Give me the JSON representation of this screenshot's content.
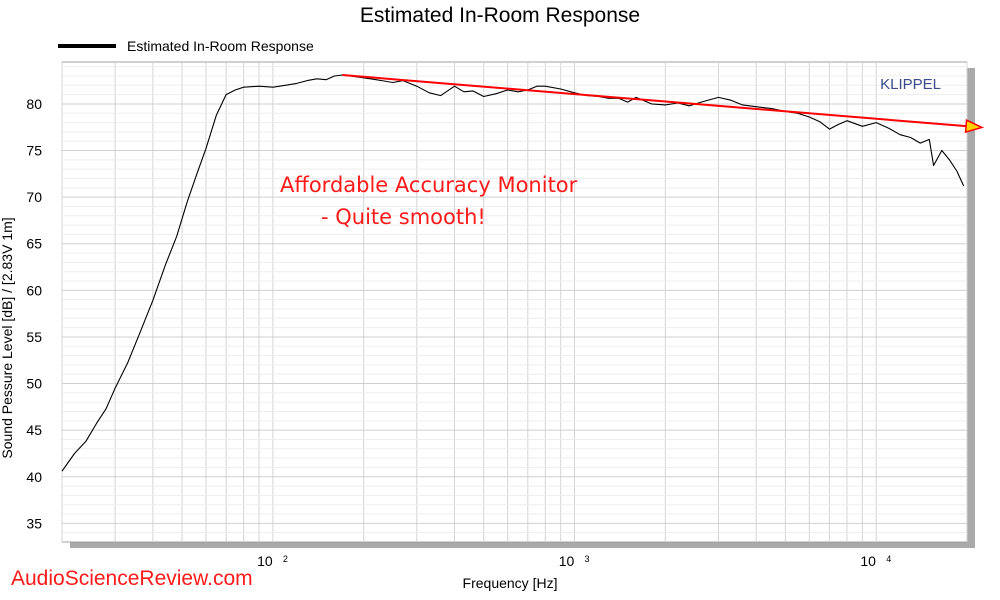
{
  "chart_data": {
    "type": "line",
    "title": "Estimated In-Room Response",
    "xlabel": "Frequency [Hz]",
    "ylabel": "Sound Pessure Level [dB]  / [2.83V 1m]",
    "x_scale": "log",
    "xlim": [
      20,
      20000
    ],
    "ylim": [
      33,
      84.5
    ],
    "y_ticks": [
      35,
      40,
      45,
      50,
      55,
      60,
      65,
      70,
      75,
      80
    ],
    "x_ticks": [
      {
        "base": "10",
        "exp": "2",
        "value": 100
      },
      {
        "base": "10",
        "exp": "3",
        "value": 1000
      },
      {
        "base": "10",
        "exp": "4",
        "value": 10000
      }
    ],
    "grid": true,
    "legend": {
      "position": "top-left",
      "entries": [
        "Estimated In-Room Response"
      ]
    },
    "series": [
      {
        "name": "Estimated In-Room Response",
        "color": "#000000",
        "x": [
          20,
          22,
          24,
          26,
          28,
          30,
          33,
          36,
          40,
          44,
          48,
          52,
          56,
          60,
          65,
          70,
          75,
          80,
          90,
          100,
          110,
          120,
          130,
          140,
          150,
          160,
          170,
          180,
          200,
          220,
          250,
          270,
          300,
          330,
          360,
          400,
          430,
          460,
          500,
          550,
          600,
          650,
          700,
          750,
          800,
          900,
          1000,
          1100,
          1200,
          1300,
          1400,
          1500,
          1600,
          1800,
          2000,
          2200,
          2400,
          2700,
          3000,
          3300,
          3600,
          4000,
          4500,
          5000,
          5500,
          6000,
          6500,
          7000,
          7500,
          8000,
          9000,
          10000,
          11000,
          12000,
          13000,
          14000,
          15000,
          15500,
          16500,
          17500,
          18500,
          19500
        ],
        "y": [
          40.6,
          42.5,
          43.8,
          45.7,
          47.3,
          49.5,
          52.2,
          55.2,
          58.9,
          62.7,
          65.8,
          69.5,
          72.5,
          75.2,
          78.8,
          81.0,
          81.5,
          81.8,
          81.9,
          81.8,
          82.0,
          82.2,
          82.5,
          82.7,
          82.6,
          83.0,
          83.1,
          83.0,
          82.8,
          82.6,
          82.3,
          82.5,
          81.9,
          81.2,
          80.9,
          81.9,
          81.3,
          81.4,
          80.8,
          81.1,
          81.5,
          81.3,
          81.5,
          81.9,
          81.9,
          81.6,
          81.2,
          80.9,
          80.8,
          80.6,
          80.6,
          80.2,
          80.7,
          80.0,
          79.9,
          80.1,
          79.8,
          80.3,
          80.7,
          80.4,
          79.9,
          79.7,
          79.5,
          79.2,
          79.0,
          78.6,
          78.1,
          77.3,
          77.8,
          78.2,
          77.6,
          78.0,
          77.4,
          76.7,
          76.4,
          75.8,
          76.2,
          73.4,
          75.0,
          74.0,
          72.8,
          71.2
        ]
      }
    ],
    "trend_line": {
      "color": "#ff0000",
      "x": [
        170,
        22000
      ],
      "y": [
        83.1,
        77.5
      ]
    },
    "annotations": [
      "Affordable Accuracy Monitor",
      "- Quite smooth!"
    ],
    "watermark_label": "KLIPPEL",
    "site_label": "AudioScienceReview.com"
  }
}
